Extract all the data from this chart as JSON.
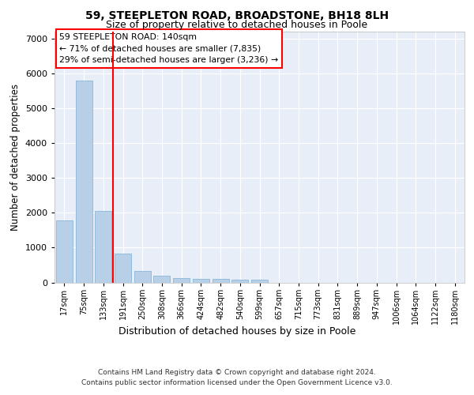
{
  "title1": "59, STEEPLETON ROAD, BROADSTONE, BH18 8LH",
  "title2": "Size of property relative to detached houses in Poole",
  "xlabel": "Distribution of detached houses by size in Poole",
  "ylabel": "Number of detached properties",
  "bar_color": "#b8cfe8",
  "bar_edge_color": "#7aaed6",
  "categories": [
    "17sqm",
    "75sqm",
    "133sqm",
    "191sqm",
    "250sqm",
    "308sqm",
    "366sqm",
    "424sqm",
    "482sqm",
    "540sqm",
    "599sqm",
    "657sqm",
    "715sqm",
    "773sqm",
    "831sqm",
    "889sqm",
    "947sqm",
    "1006sqm",
    "1064sqm",
    "1122sqm",
    "1180sqm"
  ],
  "values": [
    1780,
    5800,
    2060,
    830,
    340,
    200,
    130,
    110,
    95,
    80,
    75,
    0,
    0,
    0,
    0,
    0,
    0,
    0,
    0,
    0,
    0
  ],
  "ylim": [
    0,
    7200
  ],
  "yticks": [
    0,
    1000,
    2000,
    3000,
    4000,
    5000,
    6000,
    7000
  ],
  "annotation_line1": "59 STEEPLETON ROAD: 140sqm",
  "annotation_line2": "← 71% of detached houses are smaller (7,835)",
  "annotation_line3": "29% of semi-detached houses are larger (3,236) →",
  "red_line_x": 2.5,
  "footer1": "Contains HM Land Registry data © Crown copyright and database right 2024.",
  "footer2": "Contains public sector information licensed under the Open Government Licence v3.0.",
  "background_color": "#e8eef8",
  "grid_color": "#ffffff",
  "fig_background": "#ffffff"
}
